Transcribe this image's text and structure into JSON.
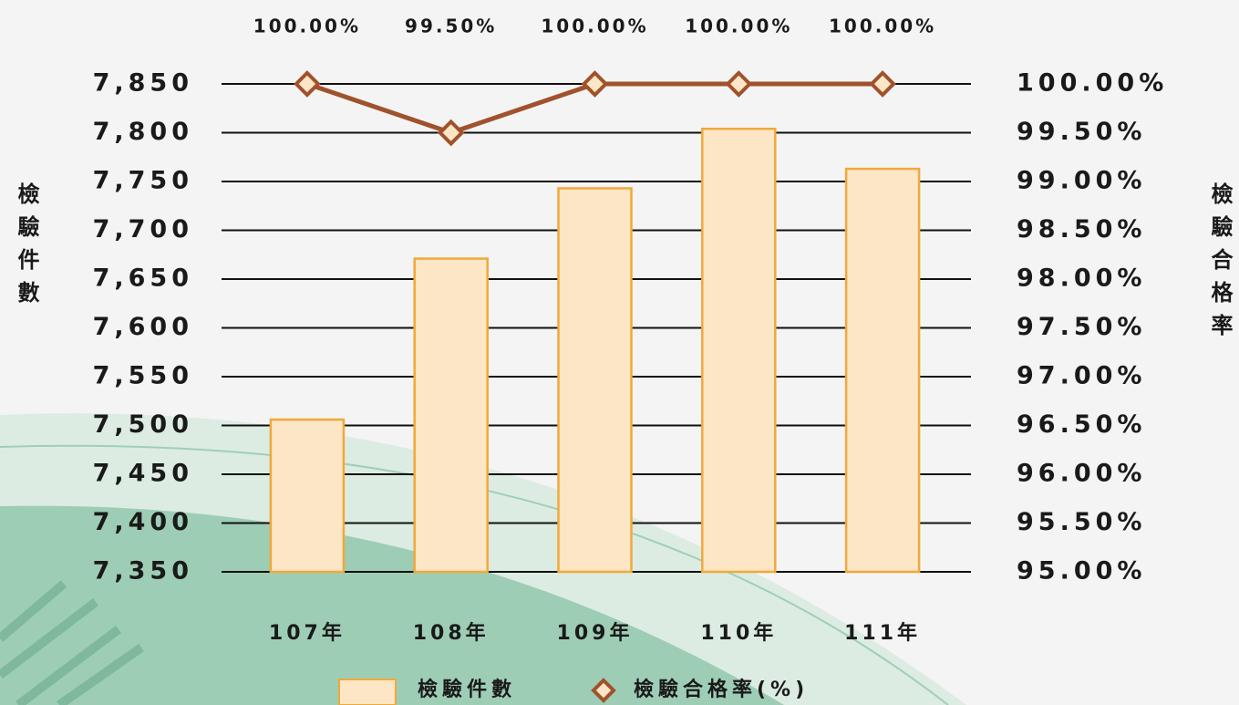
{
  "chart_data": {
    "type": "bar",
    "y_label": "檢驗件數",
    "y2_label": "檢驗合格率",
    "categories": [
      "107年",
      "108年",
      "109年",
      "110年",
      "111年"
    ],
    "series": [
      {
        "name": "檢驗件數",
        "type": "bar",
        "color": "#fde6c6",
        "values": [
          7506,
          7671,
          7743,
          7804,
          7763
        ]
      },
      {
        "name": "檢驗合格率(%)",
        "type": "line",
        "axis": "y2",
        "color": "#a0522d",
        "values": [
          100,
          99.5,
          100,
          100,
          100
        ],
        "value_labels": [
          "100.00%",
          "99.50%",
          "100.00%",
          "100.00%",
          "100.00%"
        ]
      }
    ],
    "ylim": [
      7350,
      7850
    ],
    "yticks": [
      {
        "value": 7350,
        "label": "7,350"
      },
      {
        "value": 7400,
        "label": "7,400"
      },
      {
        "value": 7450,
        "label": "7,450"
      },
      {
        "value": 7500,
        "label": "7,500"
      },
      {
        "value": 7550,
        "label": "7,550"
      },
      {
        "value": 7600,
        "label": "7,600"
      },
      {
        "value": 7650,
        "label": "7,650"
      },
      {
        "value": 7700,
        "label": "7,700"
      },
      {
        "value": 7750,
        "label": "7,750"
      },
      {
        "value": 7800,
        "label": "7,800"
      },
      {
        "value": 7850,
        "label": "7,850"
      }
    ],
    "y2lim": [
      95,
      100
    ],
    "y2ticks": [
      {
        "value": 95,
        "label": "95.00%"
      },
      {
        "value": 95.5,
        "label": "95.50%"
      },
      {
        "value": 96,
        "label": "96.00%"
      },
      {
        "value": 96.5,
        "label": "96.50%"
      },
      {
        "value": 97,
        "label": "97.00%"
      },
      {
        "value": 97.5,
        "label": "97.50%"
      },
      {
        "value": 98,
        "label": "98.00%"
      },
      {
        "value": 98.5,
        "label": "98.50%"
      },
      {
        "value": 99,
        "label": "99.00%"
      },
      {
        "value": 99.5,
        "label": "99.50%"
      },
      {
        "value": 100,
        "label": "100.00%"
      }
    ],
    "grid": true
  }
}
